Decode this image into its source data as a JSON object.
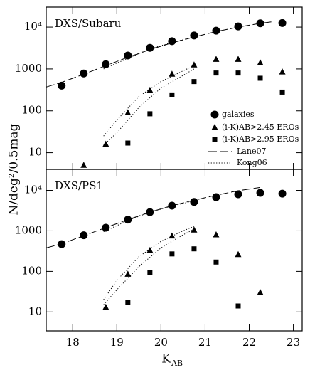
{
  "y_label": "N/deg²/0.5mag",
  "x_label": "K",
  "x_label_sub": "AB",
  "chart_data": [
    {
      "type": "scatter",
      "panel_label": "DXS/Subaru",
      "log_y": true,
      "legend": "lower right",
      "xlim": [
        17.4,
        23.2
      ],
      "xticks": [
        18,
        19,
        20,
        21,
        22,
        23
      ],
      "ylim": [
        4,
        30000
      ],
      "yticks": [
        10,
        100,
        1000,
        {
          "value": 10000,
          "label": "10⁴"
        }
      ],
      "series": [
        {
          "name": "galaxies",
          "marker": "circle",
          "color": "#000000",
          "x": [
            17.75,
            18.25,
            18.75,
            19.25,
            19.75,
            20.25,
            20.75,
            21.25,
            21.75,
            22.25,
            22.75
          ],
          "values": [
            400,
            780,
            1300,
            2100,
            3200,
            4600,
            6300,
            8200,
            10400,
            12300,
            12500
          ]
        },
        {
          "name": "(i-K)AB>2.45 EROs",
          "marker": "triangle",
          "color": "#000000",
          "x": [
            18.25,
            18.75,
            19.25,
            19.75,
            20.25,
            20.75,
            21.25,
            21.75,
            22.25,
            22.75
          ],
          "values": [
            5,
            16,
            90,
            310,
            750,
            1250,
            1700,
            1700,
            1400,
            850
          ]
        },
        {
          "name": "(i-K)AB>2.95 EROs",
          "marker": "square",
          "color": "#000000",
          "x": [
            19.25,
            19.75,
            20.25,
            20.75,
            21.25,
            21.75,
            22.25,
            22.75
          ],
          "values": [
            17,
            85,
            240,
            500,
            800,
            800,
            600,
            280
          ]
        },
        {
          "name": "Lane07",
          "line": "dash",
          "color": "#000000",
          "x": [
            17.4,
            17.75,
            18.25,
            18.75,
            19.25,
            19.75,
            20.25,
            20.75,
            21.25,
            21.75,
            22.25,
            22.5
          ],
          "values": [
            370,
            480,
            750,
            1200,
            1900,
            2900,
            4200,
            5800,
            7800,
            10000,
            12300,
            13300
          ]
        },
        {
          "name": "Kong06",
          "line": "dot",
          "color": "#000000",
          "x": [
            18.7,
            19.25,
            19.75,
            20.25,
            20.75,
            null,
            18.7,
            19.0,
            19.5,
            20.0,
            20.5,
            20.75,
            null,
            18.7,
            19.0,
            19.5,
            20.0,
            20.5,
            20.75
          ],
          "values": [
            1000,
            1800,
            3000,
            4300,
            5800,
            null,
            25,
            60,
            220,
            500,
            900,
            1200,
            null,
            15,
            30,
            120,
            350,
            700,
            1000
          ]
        }
      ]
    },
    {
      "type": "scatter",
      "panel_label": "DXS/PS1",
      "log_y": true,
      "xlim": [
        17.4,
        23.2
      ],
      "xticks": [
        18,
        19,
        20,
        21,
        22,
        23
      ],
      "ylim": [
        3.4,
        33000
      ],
      "yticks": [
        10,
        100,
        1000,
        {
          "value": 10000,
          "label": "10⁴"
        }
      ],
      "series": [
        {
          "marker": "circle",
          "color": "#000000",
          "x": [
            17.75,
            18.25,
            18.75,
            19.25,
            19.75,
            20.25,
            20.75,
            21.25,
            21.75,
            22.25,
            22.75
          ],
          "values": [
            470,
            780,
            1200,
            1900,
            2900,
            4200,
            5200,
            6800,
            8000,
            8700,
            8300
          ]
        },
        {
          "marker": "triangle",
          "color": "#000000",
          "x": [
            18.75,
            19.25,
            19.75,
            20.25,
            20.75,
            21.25,
            21.75,
            22.25
          ],
          "values": [
            13,
            85,
            330,
            750,
            1050,
            800,
            260,
            30
          ]
        },
        {
          "marker": "square",
          "color": "#000000",
          "x": [
            19.25,
            19.75,
            20.25,
            20.75,
            21.25,
            21.75
          ],
          "values": [
            17,
            95,
            270,
            360,
            170,
            14
          ]
        },
        {
          "line": "dash",
          "color": "#000000",
          "x": [
            17.4,
            17.75,
            18.25,
            18.75,
            19.25,
            19.75,
            20.25,
            20.75,
            21.25,
            21.75,
            22.25
          ],
          "values": [
            380,
            480,
            760,
            1200,
            1900,
            2900,
            4200,
            5700,
            7600,
            9800,
            11800
          ]
        },
        {
          "line": "dot",
          "color": "#000000",
          "x": [
            18.7,
            19.25,
            19.75,
            20.25,
            20.75,
            null,
            18.7,
            19.0,
            19.5,
            20.0,
            20.5,
            20.75,
            null,
            18.7,
            19.0,
            19.5,
            20.0,
            20.5,
            20.75
          ],
          "values": [
            950,
            1800,
            2900,
            4100,
            5500,
            null,
            20,
            60,
            230,
            550,
            1000,
            1300,
            null,
            15,
            35,
            130,
            380,
            800,
            1100
          ]
        }
      ]
    }
  ]
}
